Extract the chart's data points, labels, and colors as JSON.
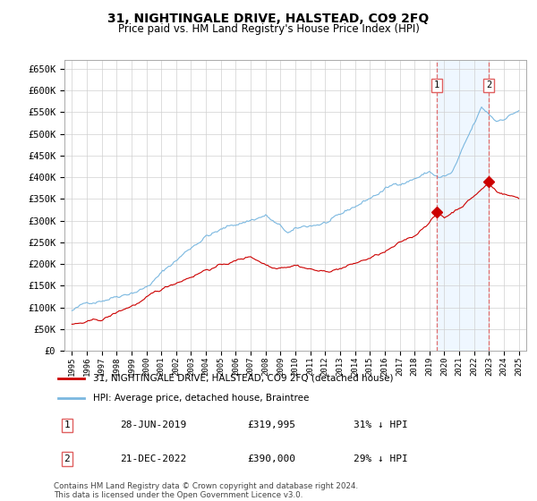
{
  "title": "31, NIGHTINGALE DRIVE, HALSTEAD, CO9 2FQ",
  "subtitle": "Price paid vs. HM Land Registry's House Price Index (HPI)",
  "hpi_label": "HPI: Average price, detached house, Braintree",
  "price_label": "31, NIGHTINGALE DRIVE, HALSTEAD, CO9 2FQ (detached house)",
  "footnote": "Contains HM Land Registry data © Crown copyright and database right 2024.\nThis data is licensed under the Open Government Licence v3.0.",
  "transactions": [
    {
      "id": 1,
      "date": "28-JUN-2019",
      "price": 319995,
      "pct": "31% ↓ HPI",
      "year_x": 2019.49
    },
    {
      "id": 2,
      "date": "21-DEC-2022",
      "price": 390000,
      "pct": "29% ↓ HPI",
      "year_x": 2022.97
    }
  ],
  "hpi_color": "#7bb8e0",
  "price_color": "#cc0000",
  "dashed_color": "#e06060",
  "background_shade": "#ddeeff",
  "ylim": [
    0,
    670000
  ],
  "yticks": [
    0,
    50000,
    100000,
    150000,
    200000,
    250000,
    300000,
    350000,
    400000,
    450000,
    500000,
    550000,
    600000,
    650000
  ],
  "xlim_start": 1994.5,
  "xlim_end": 2025.5
}
